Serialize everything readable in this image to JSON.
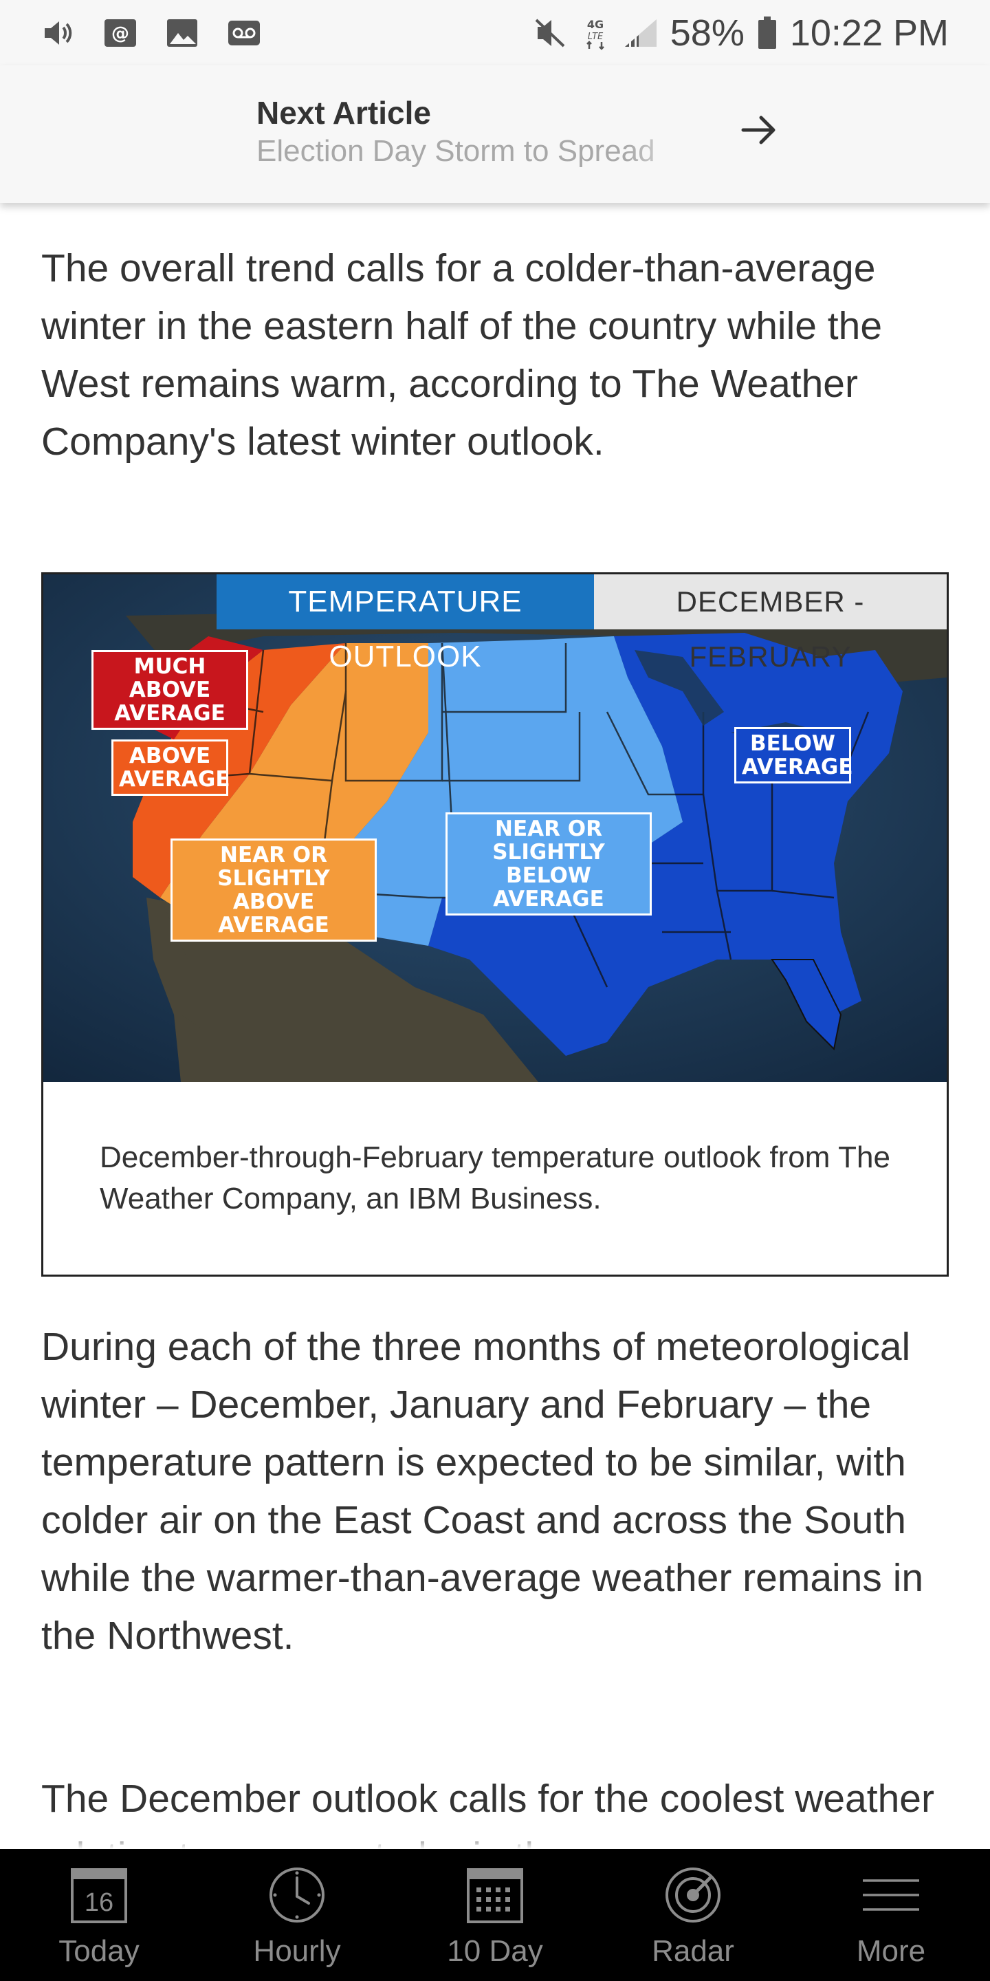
{
  "status_bar": {
    "battery": "58%",
    "time": "10:22 PM",
    "network": "4G LTE",
    "icons": [
      "volume-icon",
      "email-icon",
      "gallery-icon",
      "voicemail-icon",
      "vibrate-off-icon",
      "signal-icon",
      "battery-icon"
    ]
  },
  "next_article": {
    "label": "Next Article",
    "title": "Election Day Storm to Spread",
    "arrow_icon": "arrow-right-icon"
  },
  "article": {
    "paragraph_1": "The overall trend calls for a colder-than-average winter in the eastern half of the country while the West remains warm, according to The Weather Company's latest winter outlook.",
    "paragraph_2": "During each of the three months of meteorological winter – December, January and February – the temperature pattern is expected to be similar, with colder air on the East Coast and across the South while the warmer-than-average weather remains in the Northwest.",
    "paragraph_3": "The December outlook calls for the coolest weather relative to average to be in the"
  },
  "figure": {
    "map_title": "TEMPERATURE OUTLOOK",
    "map_dates": "DECEMBER - FEBRUARY",
    "legend": {
      "much_above": "MUCH ABOVE AVERAGE",
      "above": "ABOVE AVERAGE",
      "near_above": "NEAR OR SLIGHTLY ABOVE AVERAGE",
      "near_below": "NEAR OR SLIGHTLY BELOW AVERAGE",
      "below": "BELOW AVERAGE"
    },
    "colors": {
      "much_above": "#c8161d",
      "above": "#ee5a1c",
      "near_above": "#f49b3a",
      "near_below": "#5ba6ef",
      "below": "#1448c8",
      "ocean": "#1c3a57"
    },
    "caption": "December-through-February temperature outlook from The Weather Company, an IBM Business."
  },
  "bottom_nav": {
    "items": [
      {
        "label": "Today",
        "icon": "calendar-day-icon",
        "day_number": "16"
      },
      {
        "label": "Hourly",
        "icon": "clock-icon"
      },
      {
        "label": "10 Day",
        "icon": "calendar-grid-icon"
      },
      {
        "label": "Radar",
        "icon": "radar-icon"
      },
      {
        "label": "More",
        "icon": "menu-icon"
      }
    ]
  }
}
